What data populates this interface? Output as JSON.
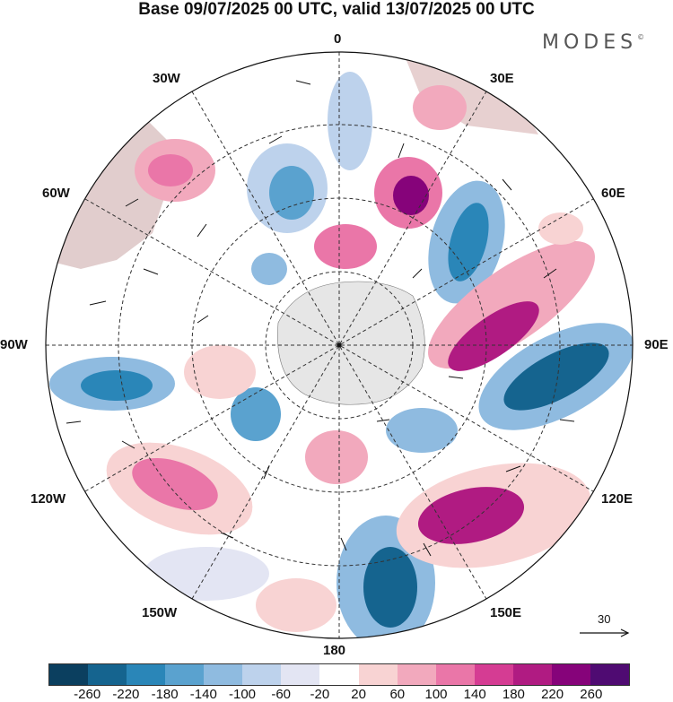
{
  "title": "Base 09/07/2025 00 UTC, valid 13/07/2025 00 UTC",
  "brand": "MODES",
  "brand_mark": "©",
  "longitude_labels": {
    "top": "0",
    "bottom": "180",
    "left": "90W",
    "right": "90E",
    "w30": "30W",
    "w60": "60W",
    "w120": "120W",
    "w150": "150W",
    "e30": "30E",
    "e60": "60E",
    "e120": "120E",
    "e150": "150E"
  },
  "vector_reference": "30",
  "colorbar": {
    "tick_labels": [
      "-260",
      "-220",
      "-180",
      "-140",
      "-100",
      "-60",
      "-20",
      "20",
      "60",
      "100",
      "140",
      "180",
      "220",
      "260"
    ],
    "colors": [
      "#0b3f5f",
      "#15648f",
      "#2a86b8",
      "#5aa2cf",
      "#8fbbe0",
      "#bdd2ec",
      "#e3e5f3",
      "#ffffff",
      "#f8d3d3",
      "#f2a9bd",
      "#ea76a8",
      "#d53c93",
      "#b01b82",
      "#86037a",
      "#4f0b72"
    ]
  }
}
